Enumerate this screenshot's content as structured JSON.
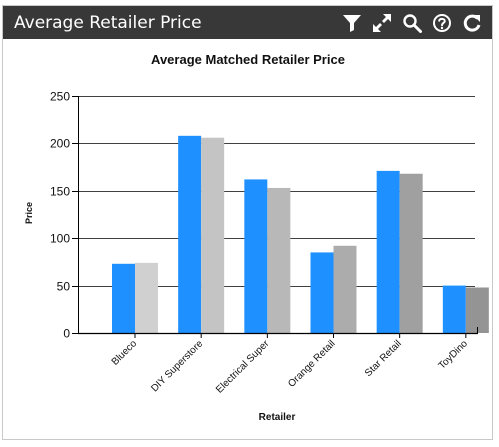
{
  "widget": {
    "title": "Average Retailer Price",
    "toolbar": [
      {
        "icon": "filter-icon",
        "label": "Filter"
      },
      {
        "icon": "expand-icon",
        "label": "Expand"
      },
      {
        "icon": "search-icon",
        "label": "Search"
      },
      {
        "icon": "help-icon",
        "label": "Help"
      },
      {
        "icon": "refresh-icon",
        "label": "Refresh"
      }
    ]
  },
  "colors": {
    "titlebar_bg": "#383838",
    "series_primary": "#1e90ff",
    "series_secondary_shades": [
      "#d0d0d0",
      "#c4c4c4",
      "#b8b8b8",
      "#acacac",
      "#a0a0a0",
      "#949494"
    ]
  },
  "chart_data": {
    "type": "bar",
    "title": "Average Matched Retailer Price",
    "xlabel": "Retailer",
    "ylabel": "Price",
    "ylim": [
      0,
      250
    ],
    "yticks": [
      0,
      50,
      100,
      150,
      200,
      250
    ],
    "grid": true,
    "legend": "none",
    "categories": [
      "Blueco",
      "DIY Superstore",
      "Electrical Super",
      "Orange Retail",
      "Star Retail",
      "ToyDino"
    ],
    "series": [
      {
        "values": [
          73,
          208,
          162,
          85,
          171,
          50
        ]
      },
      {
        "values": [
          74,
          206,
          153,
          92,
          168,
          48
        ]
      }
    ]
  }
}
